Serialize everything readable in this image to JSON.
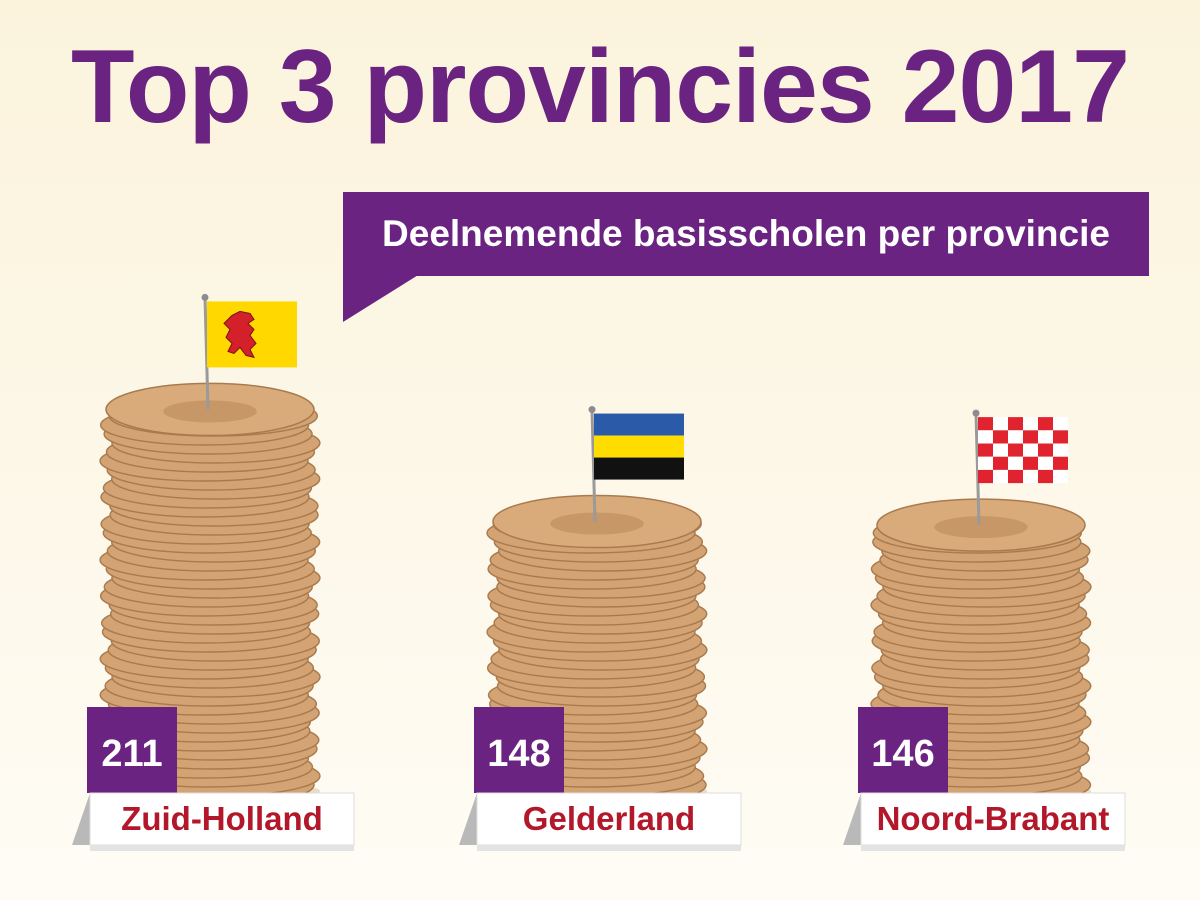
{
  "title": "Top 3 provincies 2017",
  "subtitle": "Deelnemende basisscholen per provincie",
  "colors": {
    "title": "#6a2381",
    "label_box": "#6a2381",
    "category_text": "#b3172a",
    "pancake": "#d3a373"
  },
  "chart_data": {
    "type": "bar",
    "title": "Top 3 provincies 2017",
    "subtitle": "Deelnemende basisscholen per provincie",
    "categories": [
      "Zuid-Holland",
      "Gelderland",
      "Noord-Brabant"
    ],
    "values": [
      211,
      148,
      146
    ],
    "flags": [
      "zuid-holland-flag-icon",
      "gelderland-flag-icon",
      "noord-brabant-flag-icon"
    ],
    "mark_style": "pancake-stack",
    "grid": false,
    "legend": "none"
  }
}
